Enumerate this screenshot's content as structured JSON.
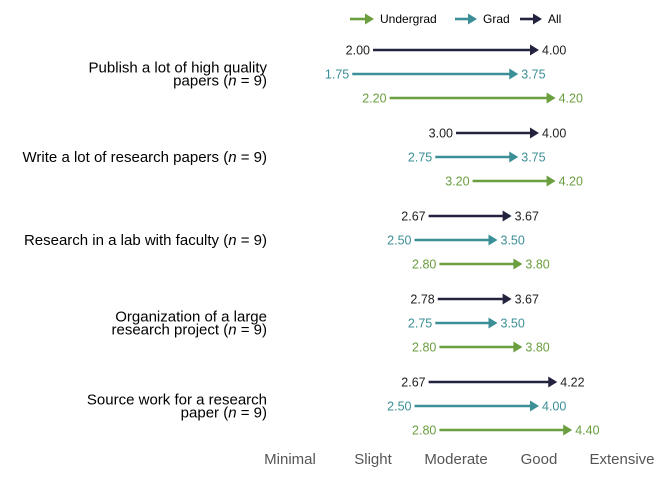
{
  "chart_data": {
    "type": "arrow",
    "xlim": [
      1,
      5
    ],
    "x_ticks": [
      {
        "value": 1,
        "label": "Minimal"
      },
      {
        "value": 2,
        "label": "Slight"
      },
      {
        "value": 3,
        "label": "Moderate"
      },
      {
        "value": 4,
        "label": "Good"
      },
      {
        "value": 5,
        "label": "Extensive"
      }
    ],
    "legend": {
      "placement": "top",
      "entries": [
        {
          "name": "Undergrad",
          "color": "#6a9e3f"
        },
        {
          "name": "Grad",
          "color": "#3b8f96"
        },
        {
          "name": "All",
          "color": "#232340"
        }
      ]
    },
    "categories": [
      {
        "label_lines": [
          {
            "main": "Publish a lot of high quality",
            "n": ""
          },
          {
            "main": "papers (",
            "n": "9"
          }
        ],
        "arrows": [
          {
            "series": "All",
            "from": 2.0,
            "to": 4.0,
            "from_label": "2.00",
            "to_label": "4.00"
          },
          {
            "series": "Grad",
            "from": 1.75,
            "to": 3.75,
            "from_label": "1.75",
            "to_label": "3.75"
          },
          {
            "series": "Undergrad",
            "from": 2.2,
            "to": 4.2,
            "from_label": "2.20",
            "to_label": "4.20"
          }
        ]
      },
      {
        "label_lines": [
          {
            "main": "Write a lot of research papers (",
            "n": "9"
          }
        ],
        "arrows": [
          {
            "series": "All",
            "from": 3.0,
            "to": 4.0,
            "from_label": "3.00",
            "to_label": "4.00"
          },
          {
            "series": "Grad",
            "from": 2.75,
            "to": 3.75,
            "from_label": "2.75",
            "to_label": "3.75"
          },
          {
            "series": "Undergrad",
            "from": 3.2,
            "to": 4.2,
            "from_label": "3.20",
            "to_label": "4.20"
          }
        ]
      },
      {
        "label_lines": [
          {
            "main": "Research in a lab with faculty (",
            "n": "9"
          }
        ],
        "arrows": [
          {
            "series": "All",
            "from": 2.67,
            "to": 3.67,
            "from_label": "2.67",
            "to_label": "3.67"
          },
          {
            "series": "Grad",
            "from": 2.5,
            "to": 3.5,
            "from_label": "2.50",
            "to_label": "3.50"
          },
          {
            "series": "Undergrad",
            "from": 2.8,
            "to": 3.8,
            "from_label": "2.80",
            "to_label": "3.80"
          }
        ]
      },
      {
        "label_lines": [
          {
            "main": "Organization of a large",
            "n": ""
          },
          {
            "main": "research project (",
            "n": "9"
          }
        ],
        "arrows": [
          {
            "series": "All",
            "from": 2.78,
            "to": 3.67,
            "from_label": "2.78",
            "to_label": "3.67"
          },
          {
            "series": "Grad",
            "from": 2.75,
            "to": 3.5,
            "from_label": "2.75",
            "to_label": "3.50"
          },
          {
            "series": "Undergrad",
            "from": 2.8,
            "to": 3.8,
            "from_label": "2.80",
            "to_label": "3.80"
          }
        ]
      },
      {
        "label_lines": [
          {
            "main": "Source work for a research",
            "n": ""
          },
          {
            "main": "paper (",
            "n": "9"
          }
        ],
        "arrows": [
          {
            "series": "All",
            "from": 2.67,
            "to": 4.22,
            "from_label": "2.67",
            "to_label": "4.22"
          },
          {
            "series": "Grad",
            "from": 2.5,
            "to": 4.0,
            "from_label": "2.50",
            "to_label": "4.00"
          },
          {
            "series": "Undergrad",
            "from": 2.8,
            "to": 4.4,
            "from_label": "2.80",
            "to_label": "4.40"
          }
        ]
      }
    ]
  }
}
